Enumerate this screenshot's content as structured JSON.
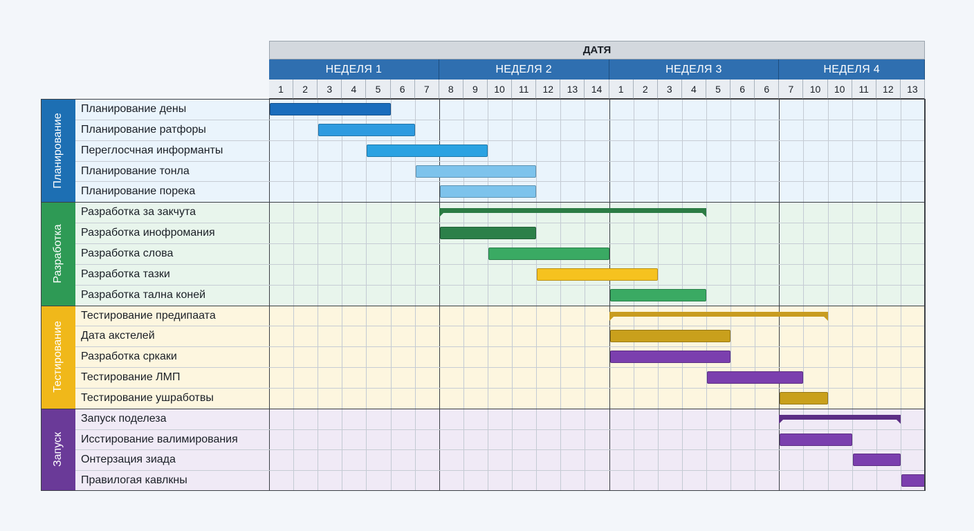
{
  "header": {
    "title": "ДАТЯ",
    "weeks": [
      "НЕДЕЛЯ 1",
      "НЕДЕЛЯ 2",
      "НЕДЕЛЯ 3",
      "НЕДЕЛЯ 4"
    ],
    "days": [
      "1",
      "2",
      "3",
      "4",
      "5",
      "6",
      "7",
      "8",
      "9",
      "10",
      "11",
      "12",
      "13",
      "14",
      "1",
      "2",
      "3",
      "4",
      "5",
      "6",
      "6",
      "7",
      "10",
      "10",
      "11",
      "12",
      "13"
    ],
    "week_spans": [
      7,
      7,
      7,
      6
    ]
  },
  "phases": [
    {
      "name": "Планирование",
      "color": "#1d6fb3",
      "bg": "#eaf4fc",
      "tasks": [
        {
          "label": "Планирование дены",
          "start": 0,
          "len": 5,
          "color": "#1a6dbd",
          "type": "bar"
        },
        {
          "label": "Планирование ратфоры",
          "start": 2,
          "len": 4,
          "color": "#2e9be0",
          "type": "bar"
        },
        {
          "label": "Переглосчная информанты",
          "start": 4,
          "len": 5,
          "color": "#2aa2e2",
          "type": "bar"
        },
        {
          "label": "Планирование тонла",
          "start": 6,
          "len": 5,
          "color": "#7dc3ec",
          "type": "bar"
        },
        {
          "label": "Планирование порека",
          "start": 7,
          "len": 4,
          "color": "#7dc3ec",
          "type": "bar"
        }
      ]
    },
    {
      "name": "Разработка",
      "color": "#2e9a55",
      "bg": "#e8f5ec",
      "tasks": [
        {
          "label": "Разработка за закчута",
          "start": 7,
          "len": 11,
          "color": "#2c7c44",
          "type": "summary"
        },
        {
          "label": "Разработка инофромания",
          "start": 7,
          "len": 4,
          "color": "#2c8049",
          "type": "bar"
        },
        {
          "label": "Разработка слова",
          "start": 9,
          "len": 5,
          "color": "#3aaa63",
          "type": "bar"
        },
        {
          "label": "Разработка тазки",
          "start": 11,
          "len": 5,
          "color": "#f6c21f",
          "type": "bar"
        },
        {
          "label": "Разработка тална коней",
          "start": 14,
          "len": 4,
          "color": "#3aaa63",
          "type": "bar"
        }
      ]
    },
    {
      "name": "Тестирование",
      "color": "#f0b81a",
      "bg": "#fdf6df",
      "tasks": [
        {
          "label": "Тестирование предипаата",
          "start": 14,
          "len": 9,
          "color": "#c89c20",
          "type": "summary"
        },
        {
          "label": "Дата акстелей",
          "start": 14,
          "len": 5,
          "color": "#c9a01c",
          "type": "bar"
        },
        {
          "label": "Разработка сркаки",
          "start": 14,
          "len": 5,
          "color": "#7b3fae",
          "type": "bar"
        },
        {
          "label": "Тестирование ЛМП",
          "start": 18,
          "len": 4,
          "color": "#7b3fae",
          "type": "bar"
        },
        {
          "label": "Тестирование ушработвы",
          "start": 21,
          "len": 2,
          "color": "#c9a01c",
          "type": "bar"
        }
      ]
    },
    {
      "name": "Запуск",
      "color": "#6a3a98",
      "bg": "#f0eaf6",
      "tasks": [
        {
          "label": "Запуск поделеза",
          "start": 21,
          "len": 5,
          "color": "#5c2e85",
          "type": "summary"
        },
        {
          "label": "Исстирование валимирования",
          "start": 21,
          "len": 3,
          "color": "#7b3fae",
          "type": "bar"
        },
        {
          "label": "Онтерзация зиада",
          "start": 24,
          "len": 2,
          "color": "#7b3fae",
          "type": "bar"
        },
        {
          "label": "Правилогая кавлкны",
          "start": 26,
          "len": 1,
          "color": "#7b3fae",
          "type": "bar"
        }
      ]
    }
  ]
}
